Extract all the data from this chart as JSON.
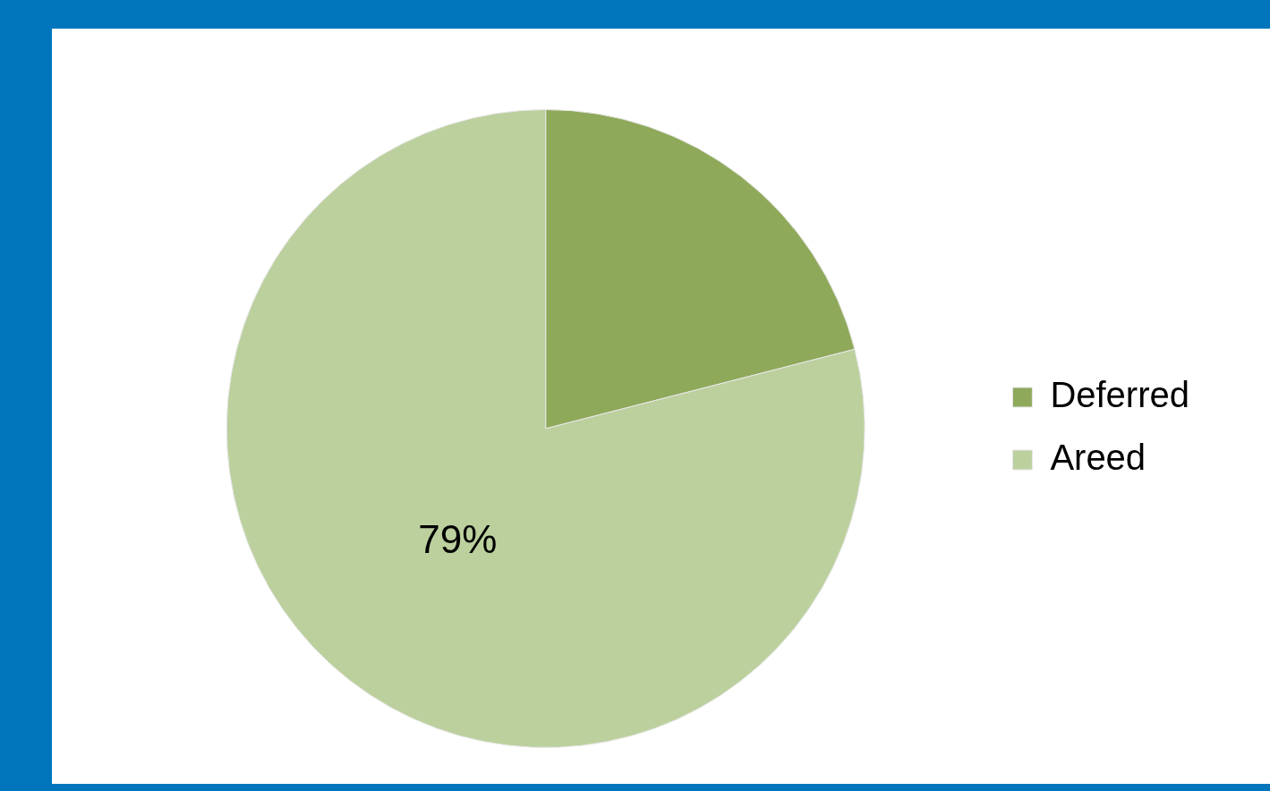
{
  "chart_data": {
    "type": "pie",
    "categories": [
      "Deferred",
      "Areed"
    ],
    "values": [
      21,
      79
    ],
    "colors": [
      "#8fa95b",
      "#bcd09e"
    ],
    "value_labels": [
      null,
      "79%"
    ],
    "legend": "right"
  }
}
